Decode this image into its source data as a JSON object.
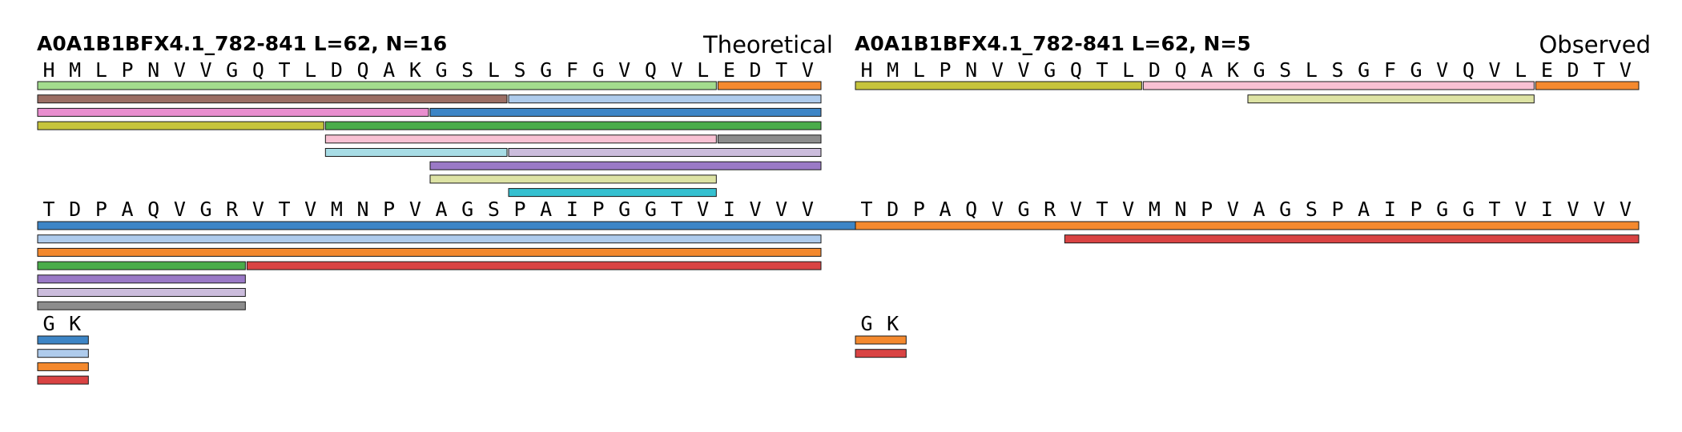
{
  "colors": {
    "blue": "#3d85c6",
    "orange": "#f4892e",
    "green": "#4aac4a",
    "red": "#d94343",
    "purple": "#9a79c6",
    "brown": "#9b6e64",
    "pink": "#e98ecf",
    "gray": "#8c8c8c",
    "olive": "#c6c43c",
    "cyan": "#35c0d0",
    "lightblue": "#aecbec",
    "lightgreen": "#a3dc8d",
    "lightpink": "#f8c1d3",
    "lightpurple": "#cbbcdc",
    "lightolive": "#dde3a4",
    "lightcyan": "#a8dde6"
  },
  "chart_data": {
    "type": "peptide-coverage",
    "sequence": "HMLPNVVGQTLDQAKGSLSGFGVQVLEDTVTDPAQVGRVTVMNPVAGSPAIPGGTVIVVVGK",
    "panels": [
      {
        "title": "A0A1B1BFX4.1_782-841  L=62, N=16",
        "mode": "Theoretical",
        "peptides": [
          {
            "start": 1,
            "end": 26,
            "color": "lightgreen"
          },
          {
            "start": 27,
            "end": 30,
            "color": "orange"
          },
          {
            "start": 1,
            "end": 18,
            "color": "brown"
          },
          {
            "start": 19,
            "end": 30,
            "color": "lightblue"
          },
          {
            "start": 1,
            "end": 15,
            "color": "pink"
          },
          {
            "start": 16,
            "end": 30,
            "color": "blue"
          },
          {
            "start": 1,
            "end": 11,
            "color": "olive"
          },
          {
            "start": 12,
            "end": 30,
            "color": "green"
          },
          {
            "start": 12,
            "end": 26,
            "color": "lightpink"
          },
          {
            "start": 27,
            "end": 30,
            "color": "gray"
          },
          {
            "start": 12,
            "end": 18,
            "color": "lightcyan"
          },
          {
            "start": 19,
            "end": 30,
            "color": "lightpurple"
          },
          {
            "start": 16,
            "end": 30,
            "color": "purple"
          },
          {
            "start": 16,
            "end": 26,
            "color": "lightolive"
          },
          {
            "start": 19,
            "end": 26,
            "color": "cyan"
          },
          {
            "start": 31,
            "end": 62,
            "color": "blue"
          },
          {
            "start": 31,
            "end": 60,
            "color": "lightblue"
          },
          {
            "start": 31,
            "end": 60,
            "color": "orange"
          },
          {
            "start": 31,
            "end": 38,
            "color": "green"
          },
          {
            "start": 39,
            "end": 60,
            "color": "red"
          },
          {
            "start": 31,
            "end": 38,
            "color": "purple"
          },
          {
            "start": 31,
            "end": 38,
            "color": "lightpurple"
          },
          {
            "start": 31,
            "end": 38,
            "color": "gray"
          },
          {
            "start": 61,
            "end": 62,
            "color": "blue",
            "row": 1
          },
          {
            "start": 61,
            "end": 62,
            "color": "lightblue",
            "row": 2
          },
          {
            "start": 61,
            "end": 62,
            "color": "orange",
            "row": 3
          },
          {
            "start": 61,
            "end": 62,
            "color": "red",
            "row": 4
          }
        ]
      },
      {
        "title": "A0A1B1BFX4.1_782-841  L=62, N=5",
        "mode": "Observed",
        "peptides": [
          {
            "start": 1,
            "end": 11,
            "color": "olive"
          },
          {
            "start": 12,
            "end": 26,
            "color": "lightpink"
          },
          {
            "start": 27,
            "end": 30,
            "color": "orange"
          },
          {
            "start": 16,
            "end": 26,
            "color": "lightolive"
          },
          {
            "start": 31,
            "end": 60,
            "color": "orange"
          },
          {
            "start": 39,
            "end": 60,
            "color": "red"
          },
          {
            "start": 61,
            "end": 62,
            "color": "orange",
            "row": 1
          },
          {
            "start": 61,
            "end": 62,
            "color": "red",
            "row": 2
          }
        ]
      }
    ]
  }
}
